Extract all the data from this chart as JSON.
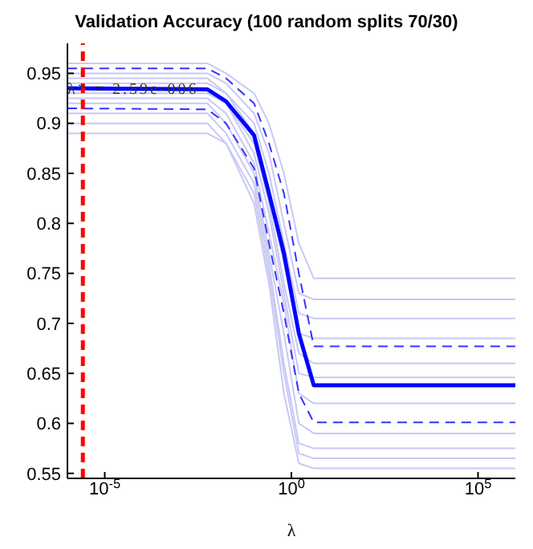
{
  "chart_data": {
    "type": "line",
    "title": "Validation Accuracy (100 random splits 70/30)",
    "xlabel": "λ",
    "log": "x",
    "x": [
      1e-06,
      0.005623,
      0.01778,
      0.1,
      0.2512,
      0.631,
      1.585,
      3.981,
      1000000
    ],
    "series": [
      {
        "color": "#c8c8f5",
        "line_style": "solid",
        "values": [
          0.96,
          0.96,
          0.95,
          0.93,
          0.9,
          0.85,
          0.78,
          0.745,
          0.745
        ]
      },
      {
        "color": "#c8c8f5",
        "line_style": "solid",
        "values": [
          0.95,
          0.95,
          0.94,
          0.91,
          0.87,
          0.8,
          0.73,
          0.724,
          0.724
        ]
      },
      {
        "color": "#c8c8f5",
        "line_style": "solid",
        "values": [
          0.945,
          0.945,
          0.93,
          0.9,
          0.85,
          0.78,
          0.71,
          0.705,
          0.705
        ]
      },
      {
        "color": "#c8c8f5",
        "line_style": "solid",
        "values": [
          0.94,
          0.94,
          0.93,
          0.89,
          0.83,
          0.76,
          0.69,
          0.685,
          0.685
        ]
      },
      {
        "color": "#c8c8f5",
        "line_style": "solid",
        "values": [
          0.935,
          0.935,
          0.92,
          0.88,
          0.82,
          0.74,
          0.67,
          0.66,
          0.66
        ]
      },
      {
        "color": "#c8c8f5",
        "line_style": "solid",
        "values": [
          0.93,
          0.93,
          0.92,
          0.87,
          0.81,
          0.73,
          0.65,
          0.646,
          0.646
        ]
      },
      {
        "color": "#c8c8f5",
        "line_style": "solid",
        "values": [
          0.925,
          0.925,
          0.91,
          0.86,
          0.79,
          0.72,
          0.63,
          0.62,
          0.62
        ]
      },
      {
        "color": "#c8c8f5",
        "line_style": "solid",
        "values": [
          0.92,
          0.92,
          0.9,
          0.85,
          0.77,
          0.69,
          0.6,
          0.59,
          0.59
        ]
      },
      {
        "color": "#c8c8f5",
        "line_style": "solid",
        "values": [
          0.91,
          0.91,
          0.89,
          0.84,
          0.76,
          0.66,
          0.58,
          0.575,
          0.575
        ]
      },
      {
        "color": "#c8c8f5",
        "line_style": "solid",
        "values": [
          0.9,
          0.9,
          0.88,
          0.82,
          0.74,
          0.63,
          0.56,
          0.555,
          0.555
        ]
      },
      {
        "color": "#c8c8f5",
        "line_style": "solid",
        "values": [
          0.89,
          0.89,
          0.88,
          0.83,
          0.75,
          0.65,
          0.57,
          0.565,
          0.565
        ]
      },
      {
        "color": "#3333ff",
        "line_style": "dashed",
        "values": [
          0.955,
          0.955,
          0.945,
          0.92,
          0.88,
          0.83,
          0.75,
          0.677,
          0.677
        ]
      },
      {
        "color": "#3333ff",
        "line_style": "dashed",
        "values": [
          0.915,
          0.914,
          0.9,
          0.855,
          0.78,
          0.71,
          0.63,
          0.601,
          0.601
        ]
      },
      {
        "color": "#0000ff",
        "line_style": "solid",
        "values": [
          0.935,
          0.934,
          0.922,
          0.888,
          0.83,
          0.77,
          0.69,
          0.638,
          0.638
        ]
      }
    ],
    "xlim": [
      1e-06,
      1000000
    ],
    "xticks": [
      {
        "value": 1e-05,
        "label": "10$^{-5}$"
      },
      {
        "value": 1,
        "label": "10$^{0}$"
      },
      {
        "value": 100000,
        "label": "10$^{5}$"
      }
    ],
    "ylim": [
      0.545,
      0.98
    ],
    "yticks": [
      0.55,
      0.6,
      0.65,
      0.7,
      0.75,
      0.8,
      0.85,
      0.9,
      0.95
    ],
    "ref_lines": [
      {
        "axis": "x",
        "value": 2.59e-06,
        "color": "#ff0000",
        "line_style": "dashed"
      }
    ],
    "annotations": [
      {
        "text": "λ* = 2.59e-006",
        "x": 1e-06,
        "y": 0.935
      }
    ],
    "grid": false,
    "legend": false,
    "marker": "none"
  }
}
